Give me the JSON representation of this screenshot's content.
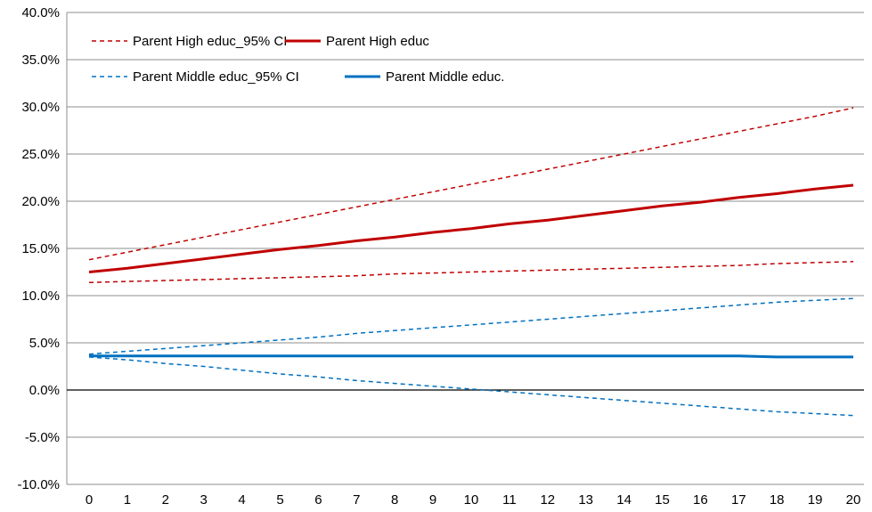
{
  "chart_data": {
    "type": "line",
    "x": [
      0,
      1,
      2,
      3,
      4,
      5,
      6,
      7,
      8,
      9,
      10,
      11,
      12,
      13,
      14,
      15,
      16,
      17,
      18,
      19,
      20
    ],
    "xlim": [
      0,
      20
    ],
    "ylim": [
      -10,
      40
    ],
    "y_ticks": [
      -10,
      -5,
      0,
      5,
      10,
      15,
      20,
      25,
      30,
      35,
      40
    ],
    "y_tick_labels": [
      "-10.0%",
      "-5.0%",
      "0.0%",
      "5.0%",
      "10.0%",
      "15.0%",
      "20.0%",
      "25.0%",
      "30.0%",
      "35.0%",
      "40.0%"
    ],
    "x_tick_labels": [
      "0",
      "1",
      "2",
      "3",
      "4",
      "5",
      "6",
      "7",
      "8",
      "9",
      "10",
      "11",
      "12",
      "13",
      "14",
      "15",
      "16",
      "17",
      "18",
      "19",
      "20"
    ],
    "grid": "horizontal",
    "legend_position": "top-left",
    "series": [
      {
        "name": "Parent High educ_95% CI",
        "color": "#c00000",
        "dash": true,
        "width": 1.5,
        "values": [
          13.8,
          14.6,
          15.4,
          16.2,
          17.0,
          17.8,
          18.6,
          19.4,
          20.2,
          21.0,
          21.8,
          22.6,
          23.4,
          24.2,
          25.0,
          25.8,
          26.6,
          27.4,
          28.2,
          29.0,
          29.9
        ]
      },
      {
        "name": "Parent High educ_95% CI",
        "color": "#c00000",
        "dash": true,
        "width": 1.5,
        "values": [
          11.4,
          11.5,
          11.6,
          11.7,
          11.8,
          11.9,
          12.0,
          12.1,
          12.3,
          12.4,
          12.5,
          12.6,
          12.7,
          12.8,
          12.9,
          13.0,
          13.1,
          13.2,
          13.4,
          13.5,
          13.6
        ]
      },
      {
        "name": "Parent High educ",
        "color": "#c00000",
        "dash": false,
        "width": 3,
        "values": [
          12.5,
          12.9,
          13.4,
          13.9,
          14.4,
          14.9,
          15.3,
          15.8,
          16.2,
          16.7,
          17.1,
          17.6,
          18.0,
          18.5,
          19.0,
          19.5,
          19.9,
          20.4,
          20.8,
          21.3,
          21.7
        ]
      },
      {
        "name": "Parent Middle educ_95% CI",
        "color": "#0070c0",
        "dash": true,
        "width": 1.5,
        "values": [
          3.8,
          4.1,
          4.4,
          4.7,
          5.0,
          5.3,
          5.6,
          6.0,
          6.3,
          6.6,
          6.9,
          7.2,
          7.5,
          7.8,
          8.1,
          8.4,
          8.7,
          9.0,
          9.3,
          9.5,
          9.7
        ]
      },
      {
        "name": "Parent Middle educ_95% CI",
        "color": "#0070c0",
        "dash": true,
        "width": 1.5,
        "values": [
          3.5,
          3.2,
          2.8,
          2.5,
          2.1,
          1.7,
          1.4,
          1.0,
          0.7,
          0.4,
          0.1,
          -0.2,
          -0.5,
          -0.8,
          -1.1,
          -1.4,
          -1.7,
          -2.0,
          -2.3,
          -2.5,
          -2.7
        ]
      },
      {
        "name": "Parent Middle educ.",
        "color": "#0070c0",
        "dash": false,
        "width": 3,
        "values": [
          3.6,
          3.6,
          3.6,
          3.6,
          3.6,
          3.6,
          3.6,
          3.6,
          3.6,
          3.6,
          3.6,
          3.6,
          3.6,
          3.6,
          3.6,
          3.6,
          3.6,
          3.6,
          3.5,
          3.5,
          3.5
        ]
      }
    ],
    "legend": [
      {
        "label": "Parent High educ_95% CI",
        "color": "#c00000",
        "dash": true,
        "width": 1.5
      },
      {
        "label": "Parent High educ",
        "color": "#c00000",
        "dash": false,
        "width": 3
      },
      {
        "label": "Parent Middle educ_95% CI",
        "color": "#0070c0",
        "dash": true,
        "width": 1.5
      },
      {
        "label": "Parent Middle educ.",
        "color": "#0070c0",
        "dash": false,
        "width": 3
      }
    ]
  }
}
